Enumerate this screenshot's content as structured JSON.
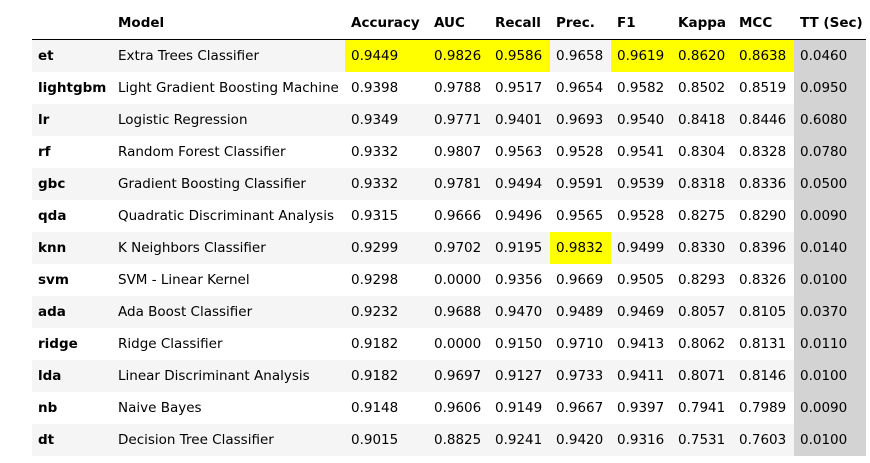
{
  "table": {
    "columns": [
      "",
      "Model",
      "Accuracy",
      "AUC",
      "Recall",
      "Prec.",
      "F1",
      "Kappa",
      "MCC",
      "TT (Sec)"
    ],
    "rows": [
      [
        "et",
        "Extra Trees Classifier",
        "0.9449",
        "0.9826",
        "0.9586",
        "0.9658",
        "0.9619",
        "0.8620",
        "0.8638",
        "0.0460"
      ],
      [
        "lightgbm",
        "Light Gradient Boosting Machine",
        "0.9398",
        "0.9788",
        "0.9517",
        "0.9654",
        "0.9582",
        "0.8502",
        "0.8519",
        "0.0950"
      ],
      [
        "lr",
        "Logistic Regression",
        "0.9349",
        "0.9771",
        "0.9401",
        "0.9693",
        "0.9540",
        "0.8418",
        "0.8446",
        "0.6080"
      ],
      [
        "rf",
        "Random Forest Classifier",
        "0.9332",
        "0.9807",
        "0.9563",
        "0.9528",
        "0.9541",
        "0.8304",
        "0.8328",
        "0.0780"
      ],
      [
        "gbc",
        "Gradient Boosting Classifier",
        "0.9332",
        "0.9781",
        "0.9494",
        "0.9591",
        "0.9539",
        "0.8318",
        "0.8336",
        "0.0500"
      ],
      [
        "qda",
        "Quadratic Discriminant Analysis",
        "0.9315",
        "0.9666",
        "0.9496",
        "0.9565",
        "0.9528",
        "0.8275",
        "0.8290",
        "0.0090"
      ],
      [
        "knn",
        "K Neighbors Classifier",
        "0.9299",
        "0.9702",
        "0.9195",
        "0.9832",
        "0.9499",
        "0.8330",
        "0.8396",
        "0.0140"
      ],
      [
        "svm",
        "SVM - Linear Kernel",
        "0.9298",
        "0.0000",
        "0.9356",
        "0.9669",
        "0.9505",
        "0.8293",
        "0.8326",
        "0.0100"
      ],
      [
        "ada",
        "Ada Boost Classifier",
        "0.9232",
        "0.9688",
        "0.9470",
        "0.9489",
        "0.9469",
        "0.8057",
        "0.8105",
        "0.0370"
      ],
      [
        "ridge",
        "Ridge Classifier",
        "0.9182",
        "0.0000",
        "0.9150",
        "0.9710",
        "0.9413",
        "0.8062",
        "0.8131",
        "0.0110"
      ],
      [
        "lda",
        "Linear Discriminant Analysis",
        "0.9182",
        "0.9697",
        "0.9127",
        "0.9733",
        "0.9411",
        "0.8071",
        "0.8146",
        "0.0100"
      ],
      [
        "nb",
        "Naive Bayes",
        "0.9148",
        "0.9606",
        "0.9149",
        "0.9667",
        "0.9397",
        "0.7941",
        "0.7989",
        "0.0090"
      ],
      [
        "dt",
        "Decision Tree Classifier",
        "0.9015",
        "0.8825",
        "0.9241",
        "0.9420",
        "0.9316",
        "0.7531",
        "0.7603",
        "0.0100"
      ]
    ],
    "highlight_color": "#ffff00",
    "highlighted": [
      [
        0,
        2
      ],
      [
        0,
        3
      ],
      [
        0,
        4
      ],
      [
        0,
        6
      ],
      [
        0,
        7
      ],
      [
        0,
        8
      ],
      [
        6,
        5
      ]
    ],
    "shaded_column": 9,
    "shade_color": "#d3d3d3"
  }
}
